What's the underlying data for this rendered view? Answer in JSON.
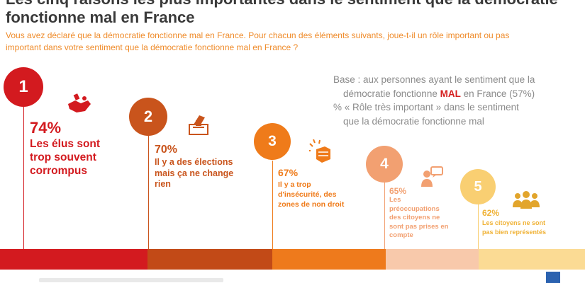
{
  "header": {
    "title_cut": "Les cinq raisons les plus importantes dans le sentiment que la démocratie",
    "title_main": "fonctionne mal en France",
    "subtitle": "Vous avez déclaré que la démocratie fonctionne mal en France. Pour chacun des éléments suivants, joue-t-il un rôle important ou pas important dans votre sentiment que la démocratie fonctionne mal en France ?"
  },
  "base_note": {
    "line1_a": "Base : aux personnes ayant le sentiment que la",
    "line2_a": "démocratie fonctionne ",
    "line2_mal": "MAL",
    "line2_b": " en France (57%)",
    "line3": "% « Rôle très important » dans le sentiment",
    "line4": "que la démocratie fonctionne mal"
  },
  "items": [
    {
      "rank": "1",
      "percent": "74%",
      "label": "Les élus sont trop souvent corrompus",
      "color": "#d31a1f",
      "icon": "corruption-handshake-icon"
    },
    {
      "rank": "2",
      "percent": "70%",
      "label": "Il y a des élections mais ça ne change rien",
      "color": "#c9541c",
      "icon": "ballot-box-icon"
    },
    {
      "rank": "3",
      "percent": "67%",
      "label": "Il y a trop d'insécurité, des zones de non droit",
      "color": "#ef7b1a",
      "icon": "fist-punch-icon"
    },
    {
      "rank": "4",
      "percent": "65%",
      "label": "Les préoccupations des citoyens ne sont pas prises en compte",
      "color": "#f2a071",
      "icon": "person-speech-icon"
    },
    {
      "rank": "5",
      "percent": "62%",
      "label": "Les citoyens ne sont pas bien représentés",
      "color": "#f9cf72",
      "icon": "group-icon"
    }
  ],
  "bar_colors": [
    "#d31a1f",
    "#c24a17",
    "#ee7a1c",
    "#f8c9ab",
    "#fbdb94"
  ]
}
